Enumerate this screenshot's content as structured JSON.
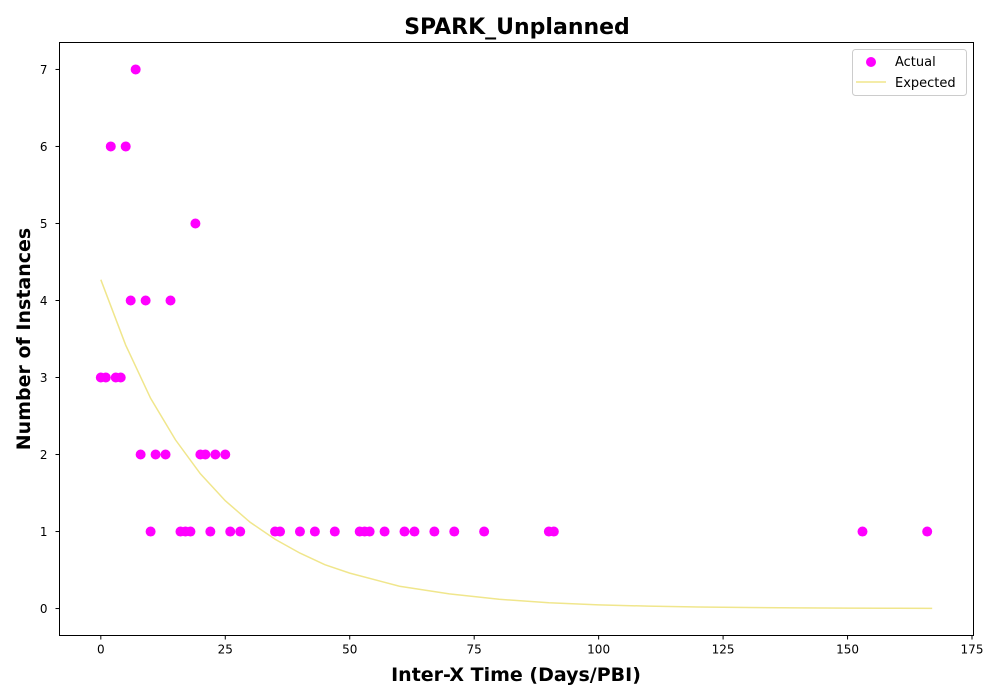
{
  "chart_data": {
    "type": "scatter",
    "title": "SPARK_Unplanned",
    "xlabel": "Inter-X Time (Days/PBI)",
    "ylabel": "Number of Instances",
    "xlim": [
      -8.3,
      175.3
    ],
    "ylim": [
      -0.35,
      7.35
    ],
    "xticks": [
      0,
      25,
      50,
      75,
      100,
      125,
      150,
      175
    ],
    "yticks": [
      0,
      1,
      2,
      3,
      4,
      5,
      6,
      7
    ],
    "grid": false,
    "legend_position": "top-right",
    "series": [
      {
        "name": "Actual",
        "kind": "scatter",
        "color": "#ff00ff",
        "x": [
          0,
          1,
          2,
          3,
          4,
          5,
          6,
          7,
          8,
          9,
          10,
          11,
          13,
          14,
          16,
          17,
          18,
          19,
          20,
          21,
          22,
          23,
          25,
          26,
          28,
          35,
          36,
          40,
          43,
          47,
          52,
          53,
          54,
          57,
          61,
          63,
          67,
          71,
          77,
          90,
          91,
          153,
          166
        ],
        "y": [
          3,
          3,
          6,
          3,
          3,
          6,
          4,
          7,
          2,
          4,
          1,
          2,
          2,
          4,
          1,
          1,
          1,
          5,
          2,
          2,
          1,
          2,
          2,
          1,
          1,
          1,
          1,
          1,
          1,
          1,
          1,
          1,
          1,
          1,
          1,
          1,
          1,
          1,
          1,
          1,
          1,
          1,
          1
        ]
      },
      {
        "name": "Expected",
        "kind": "line",
        "color": "#f0e68c",
        "x": [
          0,
          5,
          10,
          15,
          20,
          25,
          30,
          35,
          40,
          45,
          50,
          60,
          70,
          80,
          90,
          100,
          110,
          120,
          130,
          140,
          150,
          160,
          167
        ],
        "y": [
          4.27,
          3.42,
          2.73,
          2.19,
          1.75,
          1.4,
          1.12,
          0.9,
          0.72,
          0.57,
          0.46,
          0.29,
          0.19,
          0.12,
          0.076,
          0.048,
          0.031,
          0.02,
          0.013,
          0.008,
          0.005,
          0.003,
          0.002
        ]
      }
    ]
  }
}
